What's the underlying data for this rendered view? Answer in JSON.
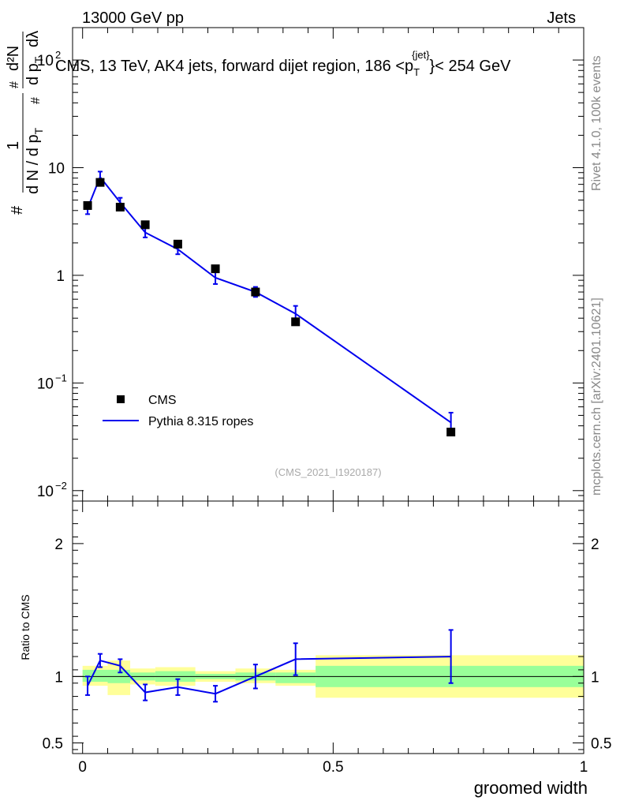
{
  "header": {
    "left": "13000 GeV pp",
    "right": "Jets"
  },
  "side_labels": {
    "rivet": "Rivet 4.1.0, 100k events",
    "mcplots": "mcplots.cern.ch [arXiv:2401.10621]"
  },
  "chart_data": [
    {
      "type": "line",
      "title": "CMS, 13 TeV, AK4 jets, forward dijet region, 186 < p_T^{jet} < 254 GeV",
      "title_parts": {
        "lead": "CMS, 13 TeV, AK4 jets, forward dijet region, 186 <p",
        "sub": "T",
        "sup": "{jet}",
        "tail": "}< 254 GeV"
      },
      "ylabel_parts": {
        "hash": "#",
        "one": "1",
        "denominator": "d N / d p",
        "sub_t": "T",
        "d2n": "d²N",
        "dpt": "d p",
        "dlambda": "dλ"
      },
      "watermark": "(CMS_2021_I1920187)",
      "yscale": "log",
      "ylim": [
        0.008,
        200
      ],
      "xlim": [
        -0.02,
        1.0
      ],
      "ytick_labels": [
        {
          "value": 0.01,
          "base": "10",
          "exp": "−2"
        },
        {
          "value": 0.1,
          "base": "10",
          "exp": "−1"
        },
        {
          "value": 1,
          "base": "1",
          "exp": ""
        },
        {
          "value": 10,
          "base": "10",
          "exp": ""
        },
        {
          "value": 100,
          "base": "10",
          "exp": "2"
        }
      ],
      "legend_position": "lower-left",
      "series": [
        {
          "name": "CMS",
          "style": "markers",
          "color": "#000000",
          "x": [
            0.01,
            0.035,
            0.075,
            0.125,
            0.19,
            0.265,
            0.345,
            0.425,
            0.735
          ],
          "y": [
            4.45,
            7.3,
            4.3,
            2.95,
            1.95,
            1.15,
            0.7,
            0.37,
            0.035
          ]
        },
        {
          "name": "Pythia 8.315 ropes",
          "style": "line",
          "color": "#0000ee",
          "x": [
            0.01,
            0.035,
            0.075,
            0.125,
            0.19,
            0.265,
            0.345,
            0.425,
            0.735
          ],
          "y": [
            4.2,
            8.2,
            4.75,
            2.5,
            1.75,
            0.95,
            0.7,
            0.44,
            0.043
          ],
          "err_low": [
            0.5,
            0.9,
            0.45,
            0.25,
            0.18,
            0.12,
            0.07,
            0.07,
            0.009
          ],
          "err_high": [
            0.6,
            1.0,
            0.5,
            0.28,
            0.2,
            0.13,
            0.08,
            0.08,
            0.01
          ]
        }
      ]
    },
    {
      "type": "line",
      "ylabel": "Ratio to CMS",
      "xlabel": "groomed width",
      "ylim": [
        0.42,
        2.32
      ],
      "xlim": [
        -0.02,
        1.0
      ],
      "yticks": [
        0.5,
        1,
        2
      ],
      "ytick_labels": [
        "0.5",
        "1",
        "2"
      ],
      "xticks": [
        0,
        0.5,
        1
      ],
      "xtick_labels": [
        "0",
        "0.5",
        "1"
      ],
      "reference_line": 1,
      "bands": [
        {
          "x0": 0.0,
          "x1": 0.05,
          "green": [
            0.96,
            1.05
          ],
          "yellow": [
            0.93,
            1.08
          ]
        },
        {
          "x0": 0.05,
          "x1": 0.095,
          "green": [
            0.95,
            1.05
          ],
          "yellow": [
            0.86,
            1.12
          ]
        },
        {
          "x0": 0.095,
          "x1": 0.145,
          "green": [
            0.97,
            1.03
          ],
          "yellow": [
            0.94,
            1.06
          ]
        },
        {
          "x0": 0.145,
          "x1": 0.225,
          "green": [
            0.96,
            1.04
          ],
          "yellow": [
            0.93,
            1.07
          ]
        },
        {
          "x0": 0.225,
          "x1": 0.305,
          "green": [
            0.98,
            1.02
          ],
          "yellow": [
            0.96,
            1.04
          ]
        },
        {
          "x0": 0.305,
          "x1": 0.385,
          "green": [
            0.97,
            1.03
          ],
          "yellow": [
            0.95,
            1.06
          ]
        },
        {
          "x0": 0.385,
          "x1": 0.465,
          "green": [
            0.95,
            1.03
          ],
          "yellow": [
            0.93,
            1.05
          ]
        },
        {
          "x0": 0.465,
          "x1": 1.0,
          "green": [
            0.92,
            1.08
          ],
          "yellow": [
            0.84,
            1.16
          ]
        }
      ],
      "series": [
        {
          "name": "Pythia 8.315 ropes / CMS",
          "color": "#0000ee",
          "x": [
            0.01,
            0.035,
            0.075,
            0.125,
            0.19,
            0.265,
            0.345,
            0.425,
            0.735
          ],
          "y": [
            0.93,
            1.12,
            1.08,
            0.88,
            0.92,
            0.87,
            1.0,
            1.13,
            1.15
          ],
          "err_low": [
            0.07,
            0.05,
            0.05,
            0.06,
            0.06,
            0.06,
            0.09,
            0.12,
            0.2
          ],
          "err_high": [
            0.07,
            0.05,
            0.05,
            0.06,
            0.06,
            0.06,
            0.09,
            0.12,
            0.2
          ]
        }
      ]
    }
  ]
}
